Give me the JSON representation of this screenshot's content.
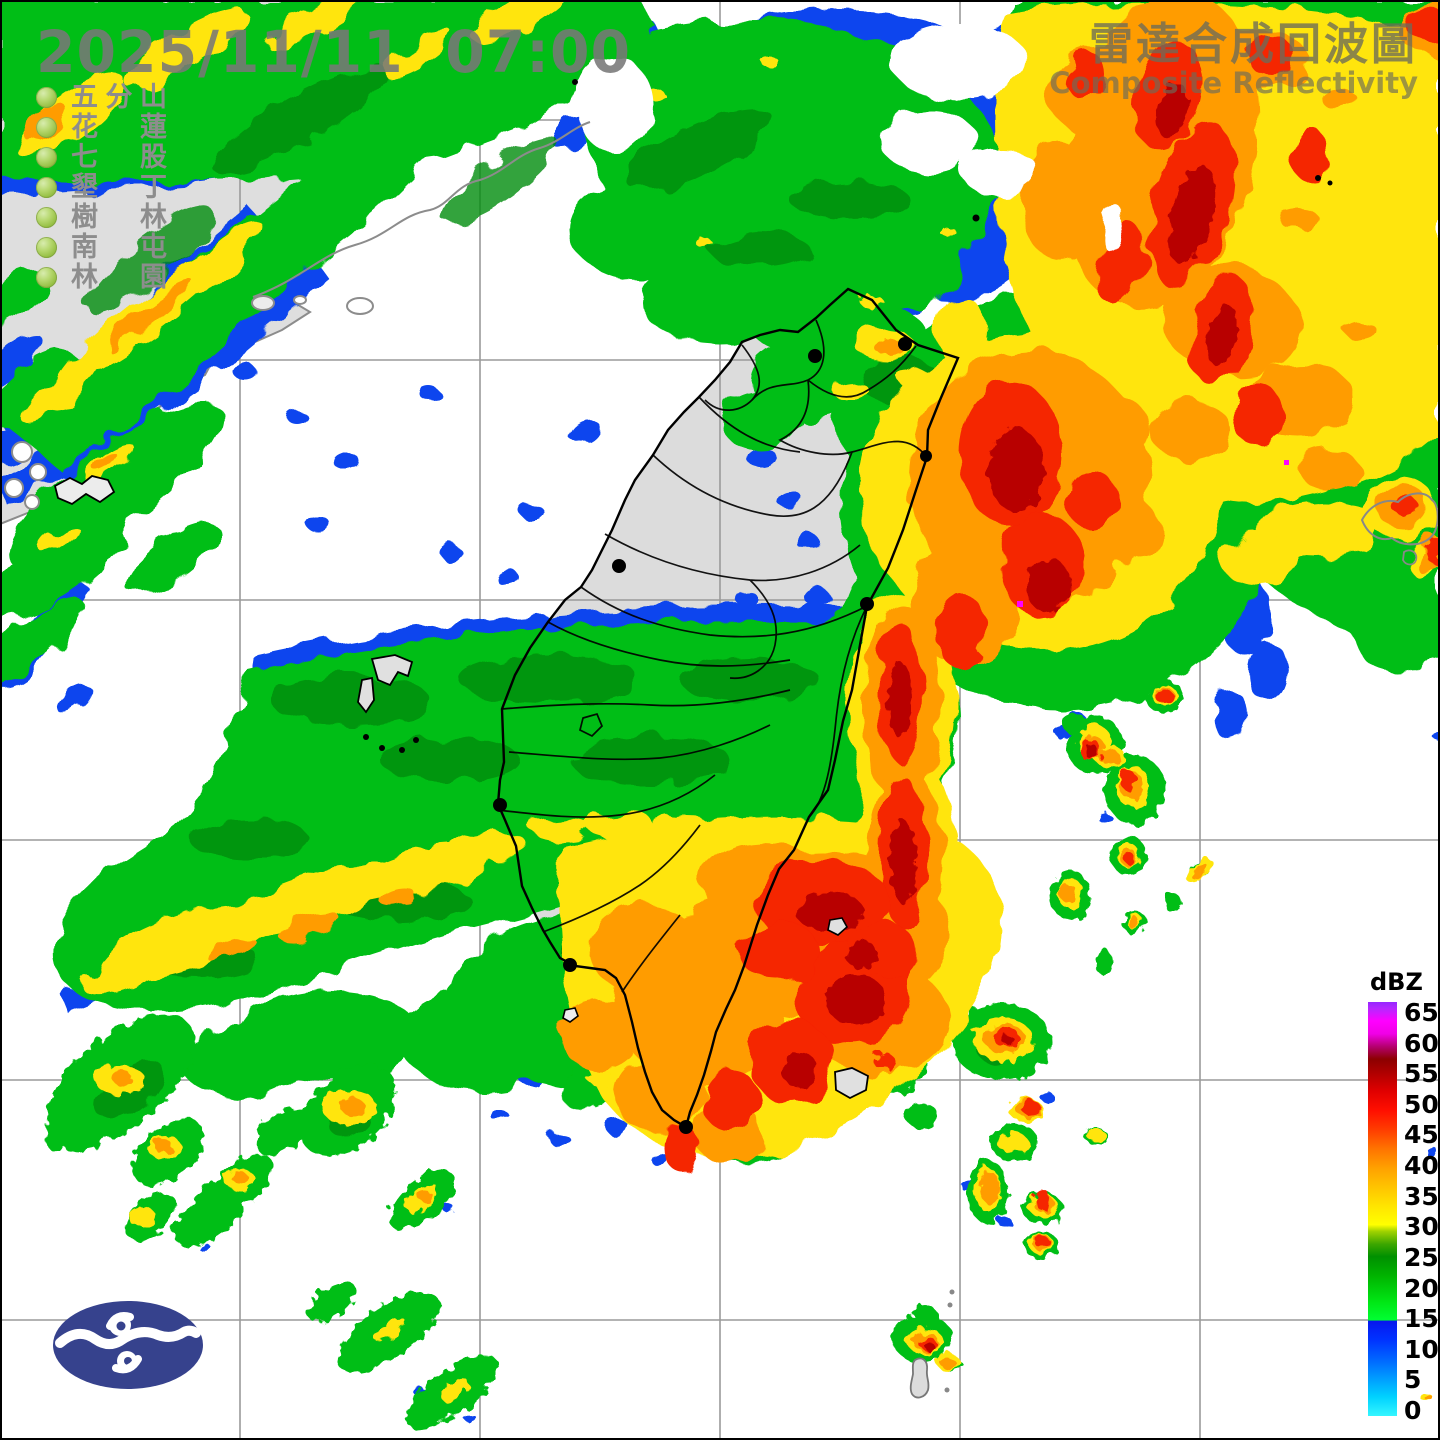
{
  "title": {
    "zh": "雷達合成回波圖",
    "en": "Composite Reflectivity"
  },
  "timestamp": "2025/11/11  07:00",
  "stations": {
    "items": [
      "五分山",
      "花蓮",
      "七股",
      "墾丁",
      "樹林",
      "南屯",
      "林園"
    ],
    "bullet_color": "#a6ce39"
  },
  "legend": {
    "title": "dBZ",
    "ticks": [
      65,
      60,
      55,
      50,
      45,
      40,
      35,
      30,
      25,
      20,
      15,
      10,
      5,
      0
    ],
    "max": 65,
    "gradient_stops": [
      [
        0,
        "#35f6ff"
      ],
      [
        3,
        "#00d2ff"
      ],
      [
        6,
        "#009bff"
      ],
      [
        9,
        "#0064ff"
      ],
      [
        12,
        "#0032ff"
      ],
      [
        14.9,
        "#0717ee"
      ],
      [
        15.1,
        "#00ff32"
      ],
      [
        18,
        "#00e614"
      ],
      [
        22,
        "#00b400"
      ],
      [
        25,
        "#009000"
      ],
      [
        27,
        "#3ca600"
      ],
      [
        29,
        "#a0d200"
      ],
      [
        30,
        "#ffff00"
      ],
      [
        33,
        "#ffe400"
      ],
      [
        36,
        "#ffc300"
      ],
      [
        39,
        "#ffa000"
      ],
      [
        42,
        "#ff7300"
      ],
      [
        45,
        "#ff3c00"
      ],
      [
        48,
        "#ff0f00"
      ],
      [
        51,
        "#e00000"
      ],
      [
        54,
        "#ad0000"
      ],
      [
        56,
        "#8c0000"
      ],
      [
        58,
        "#b4006e"
      ],
      [
        60,
        "#f000e6"
      ],
      [
        62,
        "#ff00ff"
      ],
      [
        64,
        "#b428ff"
      ],
      [
        65,
        "#9628ff"
      ]
    ]
  },
  "map": {
    "region": "Taiwan",
    "grid_color": "#9a9a9a",
    "land_color": "#dcdcdc",
    "sea_color": "#ffffff",
    "echo_colors": {
      "light_rain_blue": "#0945ee",
      "cyan": "#00cfff",
      "green": "#00be14",
      "dark_green": "#008c0a",
      "yellow": "#ffe50a",
      "orange": "#ff9c00",
      "red": "#f52500",
      "dark_red": "#b80000",
      "magenta": "#ff00ff"
    }
  },
  "logo": {
    "name": "cwa-logo",
    "color": "#36428d"
  }
}
